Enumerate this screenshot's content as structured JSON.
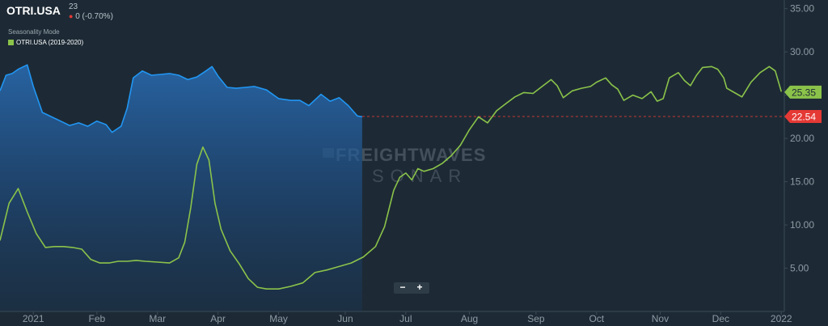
{
  "header": {
    "ticker": "OTRI.USA",
    "value": "23",
    "change": "0 (-0.70%)",
    "mode_label": "Seasonality Mode",
    "legend_label": "OTRI.USA (2019-2020)"
  },
  "watermark": {
    "line1": "FREIGHTWAVES",
    "line2": "SONAR"
  },
  "zoom": {
    "minus": "−",
    "plus": "+"
  },
  "colors": {
    "current": "#2196f3",
    "seasonal": "#8bc34a",
    "reference": "#e53935",
    "background": "#1d2a35"
  },
  "chart_data": {
    "type": "area",
    "title": "OTRI.USA",
    "x_range": [
      0,
      12.95
    ],
    "x_ticks": [
      {
        "x": 0.55,
        "label": "2021"
      },
      {
        "x": 1.6,
        "label": "Feb"
      },
      {
        "x": 2.6,
        "label": "Mar"
      },
      {
        "x": 3.6,
        "label": "Apr"
      },
      {
        "x": 4.6,
        "label": "May"
      },
      {
        "x": 5.7,
        "label": "Jun"
      },
      {
        "x": 6.7,
        "label": "Jul"
      },
      {
        "x": 7.75,
        "label": "Aug"
      },
      {
        "x": 8.85,
        "label": "Sep"
      },
      {
        "x": 9.85,
        "label": "Oct"
      },
      {
        "x": 10.9,
        "label": "Nov"
      },
      {
        "x": 11.9,
        "label": "Dec"
      },
      {
        "x": 12.9,
        "label": "2022"
      }
    ],
    "y_range": [
      0,
      36
    ],
    "y_ticks": [
      5,
      10,
      15,
      20,
      25,
      30,
      35
    ],
    "y_tick_labels": [
      "5.00",
      "10.00",
      "15.00",
      "20.00",
      "25.00",
      "30.00",
      "35.00"
    ],
    "reference_line": {
      "value": 22.54,
      "label": "22.54"
    },
    "last_value_label": {
      "value": 25.35,
      "label": "25.35"
    },
    "grid": false,
    "series": [
      {
        "name": "OTRI.USA",
        "style": "area",
        "points": [
          [
            0,
            25.5
          ],
          [
            0.1,
            27.3
          ],
          [
            0.2,
            27.5
          ],
          [
            0.3,
            28
          ],
          [
            0.45,
            28.5
          ],
          [
            0.55,
            26
          ],
          [
            0.7,
            23
          ],
          [
            0.85,
            22.5
          ],
          [
            1,
            22
          ],
          [
            1.15,
            21.5
          ],
          [
            1.3,
            21.8
          ],
          [
            1.45,
            21.4
          ],
          [
            1.6,
            22
          ],
          [
            1.75,
            21.6
          ],
          [
            1.85,
            20.7
          ],
          [
            2,
            21.4
          ],
          [
            2.1,
            23.5
          ],
          [
            2.2,
            27
          ],
          [
            2.35,
            27.8
          ],
          [
            2.5,
            27.3
          ],
          [
            2.65,
            27.4
          ],
          [
            2.8,
            27.5
          ],
          [
            2.95,
            27.3
          ],
          [
            3.1,
            26.8
          ],
          [
            3.25,
            27.1
          ],
          [
            3.4,
            27.8
          ],
          [
            3.5,
            28.3
          ],
          [
            3.6,
            27.2
          ],
          [
            3.75,
            25.9
          ],
          [
            3.9,
            25.8
          ],
          [
            4.05,
            25.9
          ],
          [
            4.2,
            26
          ],
          [
            4.4,
            25.6
          ],
          [
            4.6,
            24.6
          ],
          [
            4.8,
            24.4
          ],
          [
            4.95,
            24.4
          ],
          [
            5.1,
            23.8
          ],
          [
            5.3,
            25.1
          ],
          [
            5.45,
            24.3
          ],
          [
            5.6,
            24.7
          ],
          [
            5.75,
            23.8
          ],
          [
            5.9,
            22.6
          ],
          [
            5.98,
            22.5
          ]
        ]
      },
      {
        "name": "OTRI.USA (2019-2020)",
        "style": "line",
        "points": [
          [
            0,
            8.2
          ],
          [
            0.15,
            12.5
          ],
          [
            0.3,
            14.2
          ],
          [
            0.45,
            11.5
          ],
          [
            0.6,
            9
          ],
          [
            0.75,
            7.4
          ],
          [
            0.9,
            7.5
          ],
          [
            1.05,
            7.5
          ],
          [
            1.2,
            7.4
          ],
          [
            1.35,
            7.2
          ],
          [
            1.5,
            6
          ],
          [
            1.65,
            5.6
          ],
          [
            1.8,
            5.6
          ],
          [
            1.95,
            5.8
          ],
          [
            2.1,
            5.8
          ],
          [
            2.25,
            5.9
          ],
          [
            2.4,
            5.8
          ],
          [
            2.6,
            5.7
          ],
          [
            2.8,
            5.6
          ],
          [
            2.95,
            6.2
          ],
          [
            3.05,
            8
          ],
          [
            3.15,
            12
          ],
          [
            3.25,
            17
          ],
          [
            3.35,
            19
          ],
          [
            3.45,
            17.5
          ],
          [
            3.55,
            12.5
          ],
          [
            3.65,
            9.5
          ],
          [
            3.8,
            7
          ],
          [
            3.95,
            5.5
          ],
          [
            4.1,
            3.8
          ],
          [
            4.25,
            2.8
          ],
          [
            4.4,
            2.6
          ],
          [
            4.6,
            2.6
          ],
          [
            4.8,
            2.9
          ],
          [
            5,
            3.3
          ],
          [
            5.2,
            4.5
          ],
          [
            5.4,
            4.8
          ],
          [
            5.6,
            5.2
          ],
          [
            5.8,
            5.6
          ],
          [
            6,
            6.3
          ],
          [
            6.2,
            7.5
          ],
          [
            6.35,
            9.8
          ],
          [
            6.5,
            14
          ],
          [
            6.6,
            15.5
          ],
          [
            6.7,
            16
          ],
          [
            6.8,
            15.2
          ],
          [
            6.9,
            16.5
          ],
          [
            7,
            16.2
          ],
          [
            7.15,
            16.5
          ],
          [
            7.3,
            17.1
          ],
          [
            7.45,
            18
          ],
          [
            7.6,
            19.2
          ],
          [
            7.75,
            21
          ],
          [
            7.9,
            22.5
          ],
          [
            8.05,
            21.8
          ],
          [
            8.2,
            23.2
          ],
          [
            8.35,
            24
          ],
          [
            8.5,
            24.8
          ],
          [
            8.65,
            25.3
          ],
          [
            8.8,
            25.2
          ],
          [
            8.95,
            26
          ],
          [
            9.1,
            26.8
          ],
          [
            9.2,
            26.1
          ],
          [
            9.3,
            24.7
          ],
          [
            9.45,
            25.5
          ],
          [
            9.6,
            25.8
          ],
          [
            9.75,
            26
          ],
          [
            9.85,
            26.5
          ],
          [
            10,
            27
          ],
          [
            10.1,
            26.2
          ],
          [
            10.2,
            25.7
          ],
          [
            10.3,
            24.4
          ],
          [
            10.45,
            25
          ],
          [
            10.6,
            24.6
          ],
          [
            10.75,
            25.4
          ],
          [
            10.85,
            24.3
          ],
          [
            10.95,
            24.6
          ],
          [
            11.05,
            27
          ],
          [
            11.2,
            27.6
          ],
          [
            11.3,
            26.7
          ],
          [
            11.4,
            26.1
          ],
          [
            11.5,
            27.3
          ],
          [
            11.6,
            28.2
          ],
          [
            11.75,
            28.3
          ],
          [
            11.85,
            28
          ],
          [
            11.95,
            27
          ],
          [
            12,
            25.8
          ],
          [
            12.15,
            25.2
          ],
          [
            12.25,
            24.8
          ],
          [
            12.4,
            26.5
          ],
          [
            12.55,
            27.6
          ],
          [
            12.7,
            28.3
          ],
          [
            12.8,
            27.8
          ],
          [
            12.9,
            25.4
          ]
        ]
      }
    ]
  }
}
